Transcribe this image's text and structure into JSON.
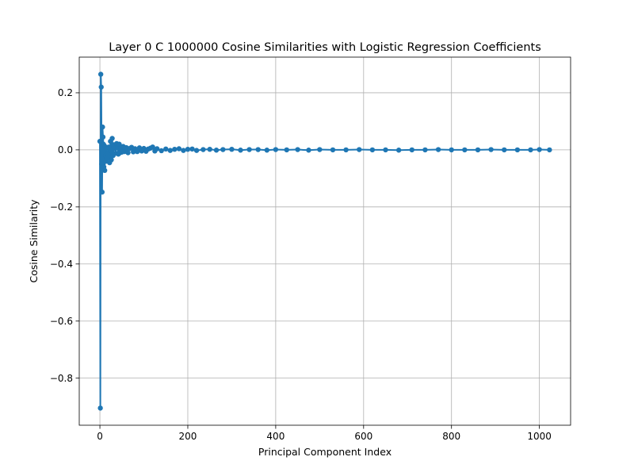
{
  "chart_data": {
    "type": "line",
    "title": "Layer 0 C 1000000 Cosine Similarities with Logistic Regression Coefficients",
    "xlabel": "Principal Component Index",
    "ylabel": "Cosine Similarity",
    "xlim": [
      -47,
      1071
    ],
    "ylim": [
      -0.965,
      0.325
    ],
    "xticks": [
      0,
      200,
      400,
      600,
      800,
      1000
    ],
    "xtick_labels": [
      "0",
      "200",
      "400",
      "600",
      "800",
      "1000"
    ],
    "yticks": [
      -0.8,
      -0.6,
      -0.4,
      -0.2,
      0.0,
      0.2
    ],
    "ytick_labels": [
      "−0.8",
      "−0.6",
      "−0.4",
      "−0.2",
      "0.0",
      "0.2"
    ],
    "grid": true,
    "marker": "circle",
    "color": "#1f77b4",
    "series": [
      {
        "x": [
          0,
          1,
          2,
          3,
          4,
          5,
          6,
          7,
          8,
          9,
          10,
          11,
          12,
          13,
          14,
          15,
          16,
          18,
          20,
          22,
          24,
          26,
          28,
          30,
          32,
          34,
          36,
          38,
          40,
          42,
          44,
          46,
          48,
          50,
          53,
          56,
          60,
          64,
          68,
          72,
          76,
          80,
          85,
          90,
          95,
          100,
          105,
          110,
          115,
          120,
          125,
          130,
          140,
          150,
          160,
          170,
          180,
          190,
          200,
          210,
          220,
          235,
          250,
          265,
          280,
          300,
          320,
          340,
          360,
          380,
          400,
          425,
          450,
          475,
          500,
          530,
          560,
          590,
          620,
          650,
          680,
          710,
          740,
          770,
          800,
          830,
          860,
          890,
          920,
          950,
          980,
          1000,
          1023
        ],
        "y": [
          0.03,
          -0.905,
          0.265,
          0.22,
          -0.05,
          -0.148,
          0.08,
          0.045,
          0.02,
          -0.06,
          0.015,
          -0.072,
          0.01,
          -0.02,
          -0.04,
          0.005,
          -0.03,
          -0.015,
          0.01,
          -0.045,
          0.03,
          -0.035,
          0.04,
          -0.02,
          0.018,
          0.005,
          -0.012,
          0.022,
          0.008,
          -0.015,
          0.02,
          -0.01,
          0.006,
          -0.008,
          0.012,
          -0.006,
          0.008,
          -0.01,
          0.005,
          0.009,
          -0.007,
          0.004,
          -0.006,
          0.007,
          -0.004,
          0.005,
          -0.005,
          0.003,
          0.006,
          0.01,
          -0.004,
          0.004,
          -0.003,
          0.003,
          -0.002,
          0.002,
          0.004,
          -0.002,
          0.002,
          0.003,
          -0.002,
          0.001,
          0.002,
          -0.001,
          0.001,
          0.002,
          -0.001,
          0.001,
          0.001,
          -0.001,
          0.001,
          0.0,
          0.001,
          -0.001,
          0.001,
          0.0,
          0.0,
          0.001,
          0.0,
          0.0,
          -0.001,
          0.0,
          0.0,
          0.001,
          0.0,
          0.0,
          0.0,
          0.001,
          0.0,
          0.0,
          0.0,
          0.001,
          0.0
        ]
      }
    ]
  }
}
